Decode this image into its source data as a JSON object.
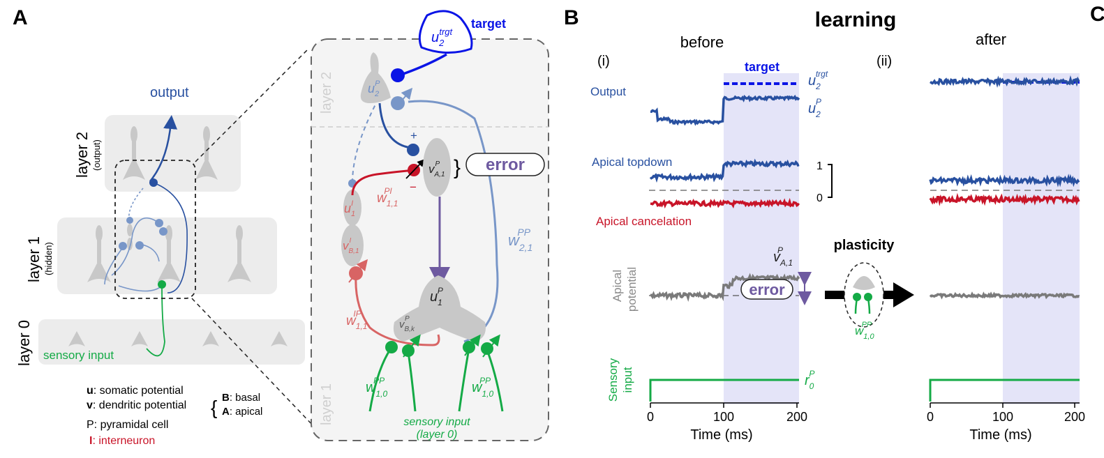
{
  "panel_a": {
    "letter": "A",
    "output": "output",
    "layer2": "layer 2",
    "layer2_sub": "(output)",
    "layer1": "layer 1",
    "layer1_sub": "(hidden)",
    "layer0": "layer 0",
    "sensory": "sensory input",
    "legend": {
      "u_b": "u",
      "u_t": ": somatic potential",
      "v_b": "v",
      "v_t": ": dendritic potential",
      "b_b": "B",
      "b_t": ": basal",
      "a_b": "A",
      "a_t": ": apical",
      "p_line": "P: pyramidal cell",
      "i_b": "I",
      "i_t": ": interneuron"
    }
  },
  "zoom": {
    "target": "target",
    "u2trgt_main": "u",
    "u2trgt_sub": "2",
    "u2trgt_sup": "trgt",
    "layer2": "layer 2",
    "layer1": "layer 1",
    "u2_main": "u",
    "u2_sub": "2",
    "u2_sup": "P",
    "plus": "+",
    "minus": "−",
    "va1_main": "v",
    "va1_sub": "A,1",
    "va1_sup": "P",
    "error": "error",
    "ui1_main": "u",
    "ui1_sub": "1",
    "ui1_sup": "I",
    "vb1_main": "v",
    "vb1_sub": "B,1",
    "vb1_sup": "I",
    "wpi_main": "w",
    "wpi_sub": "1,1",
    "wpi_sup": "PI",
    "wip_main": "w",
    "wip_sub": "1,1",
    "wip_sup": "IP",
    "w21_main": "w",
    "w21_sub": "2,1",
    "w21_sup": "PP",
    "u1_main": "u",
    "u1_sub": "1",
    "u1_sup": "P",
    "vbk_main": "v",
    "vbk_sub": "B,k",
    "vbk_sup": "P",
    "w10_main": "w",
    "w10_sub": "1,0",
    "w10_sup": "PP",
    "sens1": "sensory input",
    "sens2": "(layer 0)"
  },
  "panel_b": {
    "letter": "B",
    "title": "learning",
    "before": "before",
    "after": "after",
    "i": "(i)",
    "ii": "(ii)",
    "target": "target",
    "output": "Output",
    "apical_topdown": "Apical topdown",
    "apical_cancel": "Apical cancelation",
    "apical_pot1": "Apical",
    "apical_pot2": "potential",
    "sensory1": "Sensory",
    "sensory2": "input",
    "scale1": "1",
    "scale0": "0",
    "error": "error",
    "plasticity": "plasticity",
    "r0_main": "r",
    "r0_sub": "0",
    "r0_sup": "P",
    "u2t_main": "u",
    "u2t_sub": "2",
    "u2t_sup": "trgt",
    "u2p_main": "u",
    "u2p_sub": "2",
    "u2p_sup": "P",
    "va_main": "v",
    "va_sub": "A,1",
    "va_sup": "P",
    "wpl_main": "w",
    "wpl_sub": "1,0",
    "wpl_sup": "PP",
    "xlabel": "Time (ms)",
    "xticks": [
      "0",
      "100",
      "200"
    ]
  },
  "panel_c": {
    "letter": "C"
  },
  "colors": {
    "blue": "#2850a0",
    "bright_blue": "#0a14e6",
    "light_blue": "#7896c8",
    "red": "#c81428",
    "salmon": "#d86464",
    "green": "#14aa46",
    "purple": "#6e5aa0",
    "gray_cell": "#c8c8c8",
    "shade": "#e4e4f8"
  }
}
